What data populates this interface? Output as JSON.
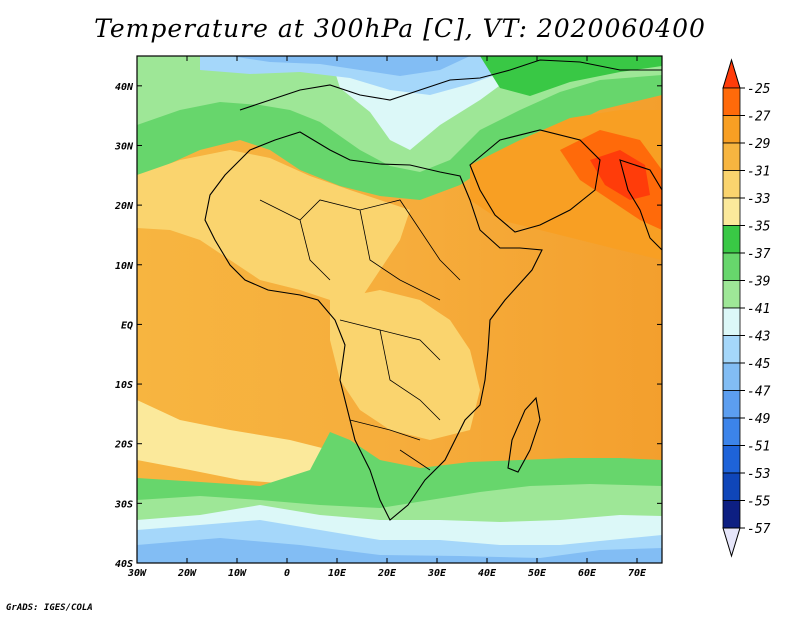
{
  "title": "Temperature at 300hPa [C], VT: 2020060400",
  "footer": "GrADS: IGES/COLA",
  "map": {
    "lon_range": [
      -30,
      75
    ],
    "lat_range": [
      -40,
      45
    ],
    "lat_labels": [
      "40N",
      "30N",
      "20N",
      "10N",
      "EQ",
      "10S",
      "20S",
      "30S",
      "40S"
    ],
    "lat_values": [
      40,
      30,
      20,
      10,
      0,
      -10,
      -20,
      -30,
      -40
    ],
    "lon_labels": [
      "30W",
      "20W",
      "10W",
      "0",
      "10E",
      "20E",
      "30E",
      "40E",
      "50E",
      "60E",
      "70E"
    ],
    "lon_values": [
      -30,
      -20,
      -10,
      0,
      10,
      20,
      30,
      40,
      50,
      60,
      70
    ]
  },
  "colorbar": {
    "labels": [
      "-25",
      "-27",
      "-29",
      "-31",
      "-33",
      "-35",
      "-37",
      "-39",
      "-41",
      "-43",
      "-45",
      "-47",
      "-49",
      "-51",
      "-53",
      "-55",
      "-57"
    ],
    "colors": [
      "#ff3c0a",
      "#ff6a0a",
      "#f89f23",
      "#f7b540",
      "#fad46e",
      "#fbe99b",
      "#39c845",
      "#67d66c",
      "#9ee797",
      "#dcf8f8",
      "#a5d7fa",
      "#82bdf4",
      "#5c9ef0",
      "#3c84ea",
      "#1e63d9",
      "#0f46b9",
      "#0d1f82",
      "#e6e6fa"
    ]
  },
  "colors": {
    "warm": "#f89f23",
    "cold": "#5c9ef0",
    "coast": "#000000"
  }
}
